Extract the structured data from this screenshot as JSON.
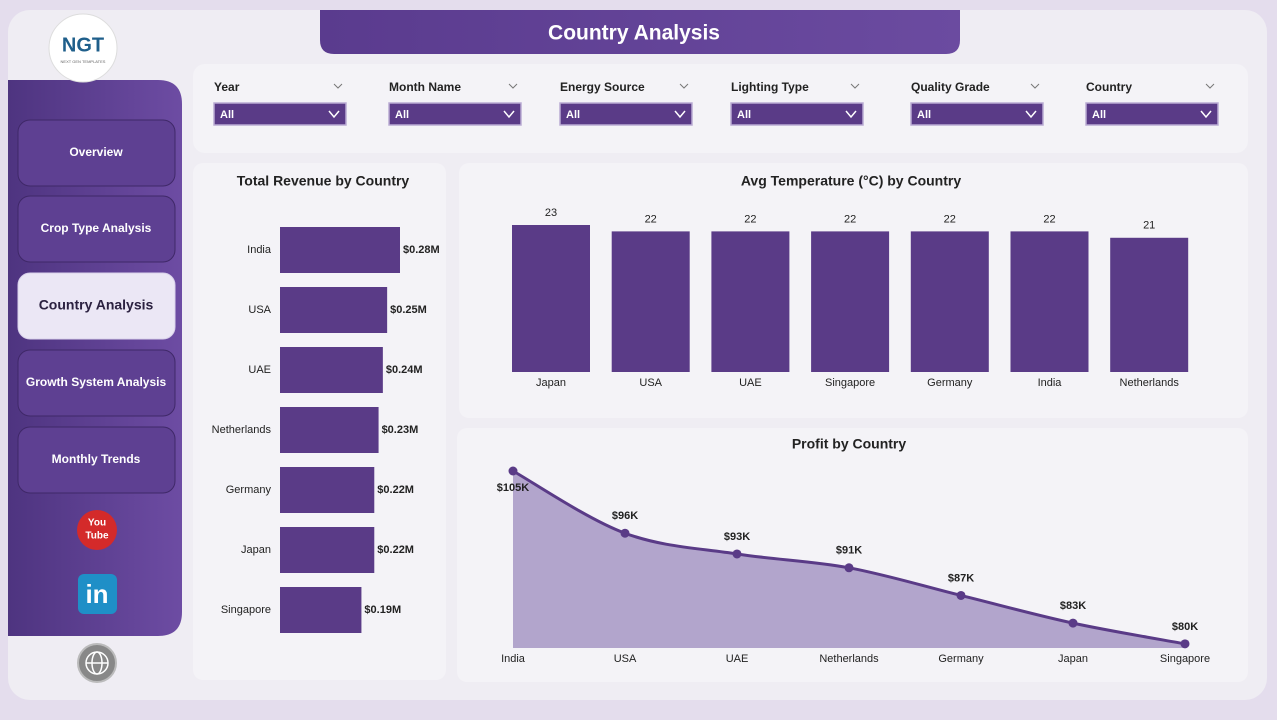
{
  "header": {
    "title": "Country Analysis",
    "logo": "NGT",
    "logo_sub": "NEXT GEN TEMPLATES"
  },
  "nav": [
    "Overview",
    "Crop Type Analysis",
    "Country Analysis",
    "Growth System Analysis",
    "Monthly Trends"
  ],
  "active_nav": 2,
  "social": {
    "youtube_top": "You",
    "youtube_bottom": "Tube",
    "linkedin": "in"
  },
  "filters": [
    {
      "label": "Year",
      "value": "All"
    },
    {
      "label": "Month Name",
      "value": "All"
    },
    {
      "label": "Energy Source",
      "value": "All"
    },
    {
      "label": "Lighting Type",
      "value": "All"
    },
    {
      "label": "Quality Grade",
      "value": "All"
    },
    {
      "label": "Country",
      "value": "All"
    }
  ],
  "chart_data": [
    {
      "type": "hbar",
      "title": "Total Revenue by Country",
      "color": "#5a3b87",
      "categories": [
        "India",
        "USA",
        "UAE",
        "Netherlands",
        "Germany",
        "Japan",
        "Singapore"
      ],
      "values": [
        0.28,
        0.25,
        0.24,
        0.23,
        0.22,
        0.22,
        0.19
      ],
      "value_labels": [
        "$0.28M",
        "$0.25M",
        "$0.24M",
        "$0.23M",
        "$0.22M",
        "$0.22M",
        "$0.19M"
      ]
    },
    {
      "type": "bar",
      "title": "Avg Temperature (°C) by Country",
      "color": "#5a3b87",
      "categories": [
        "Japan",
        "USA",
        "UAE",
        "Singapore",
        "Germany",
        "India",
        "Netherlands"
      ],
      "values": [
        23,
        22,
        22,
        22,
        22,
        22,
        21
      ]
    },
    {
      "type": "area",
      "title": "Profit by Country",
      "color": "#5a3b87",
      "fill": "#b2a5cc",
      "categories": [
        "India",
        "USA",
        "UAE",
        "Netherlands",
        "Germany",
        "Japan",
        "Singapore"
      ],
      "values": [
        105,
        96,
        93,
        91,
        87,
        83,
        80
      ],
      "value_labels": [
        "$105K",
        "$96K",
        "$93K",
        "$91K",
        "$87K",
        "$83K",
        "$80K"
      ],
      "ylim": [
        79.4,
        105
      ]
    }
  ]
}
